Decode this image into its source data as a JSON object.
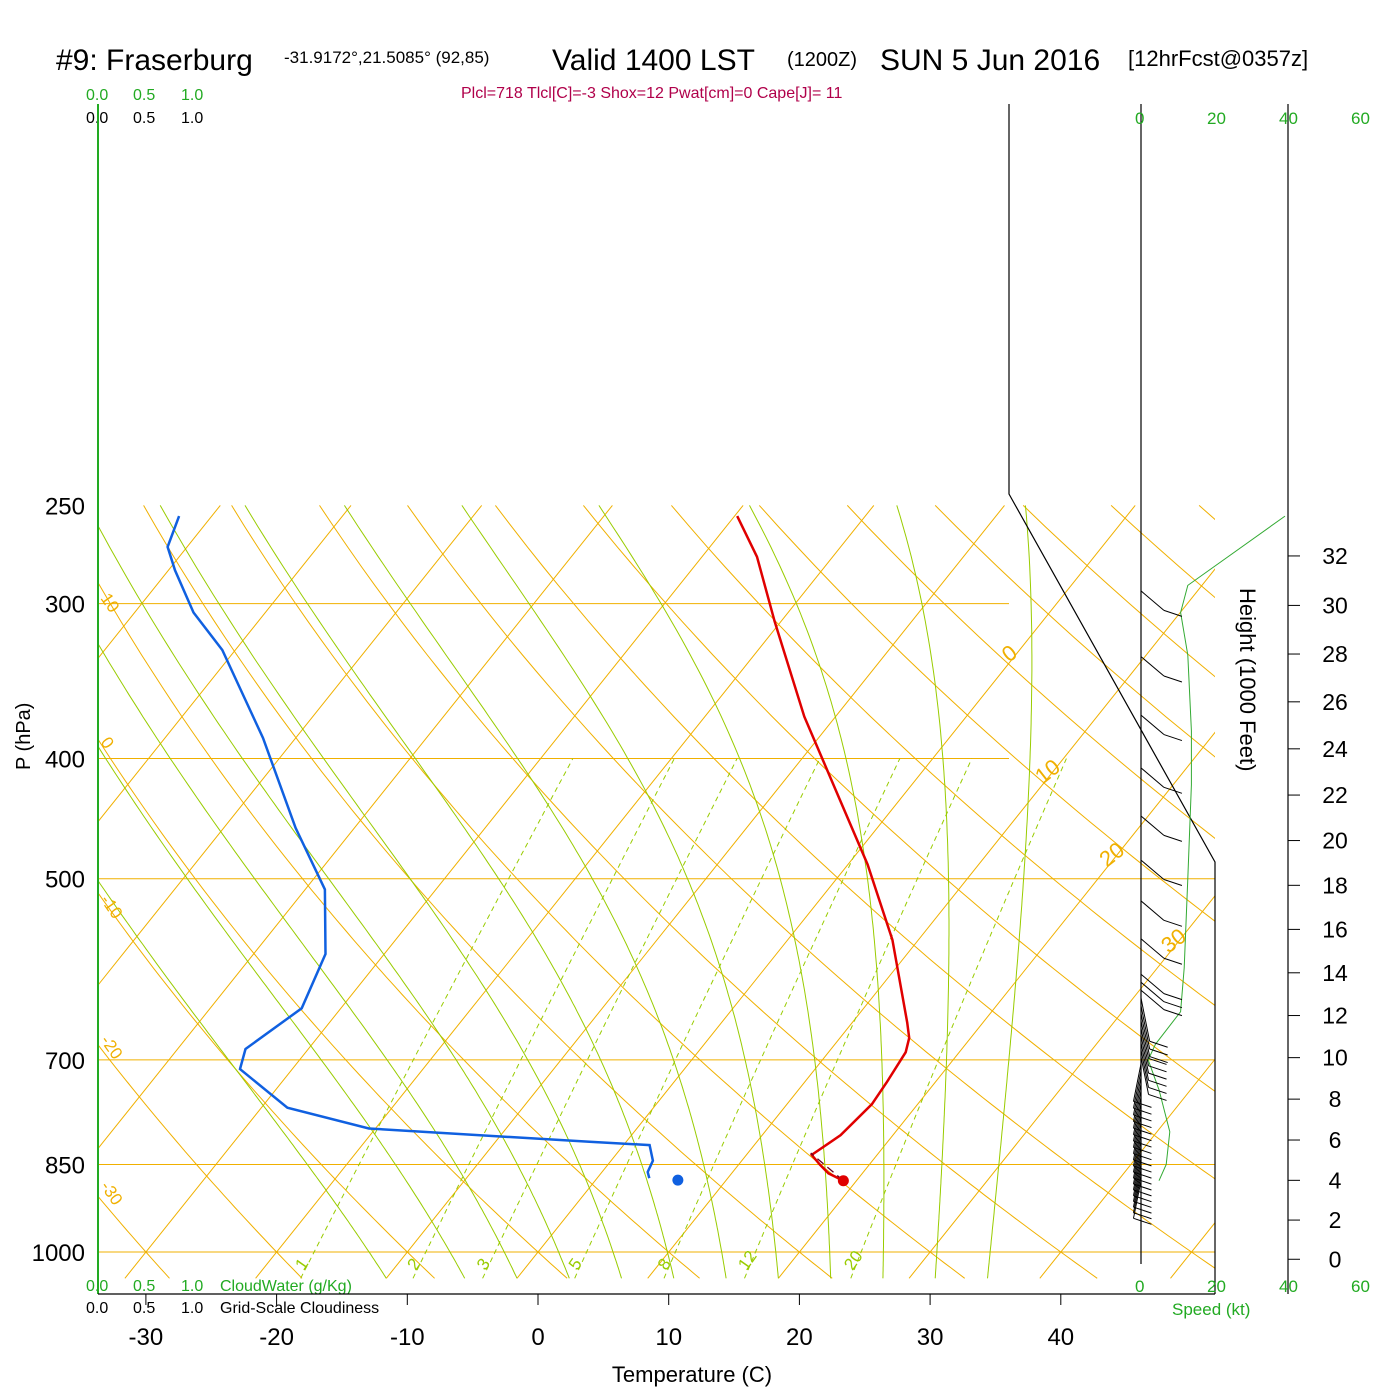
{
  "header": {
    "station": "#9: Fraserburg",
    "coords": "-31.9172°,21.5085° (92,85)",
    "valid_label": "Valid 1400 LST",
    "utc": "(1200Z)",
    "date": "SUN 5 Jun 2016",
    "forecast": "[12hrFcst@0357z]",
    "indices": "Plcl=718 Tlcl[C]=-3 Shox=12 Pwat[cm]=0 Cape[J]= 11"
  },
  "colors": {
    "temperature": "#e00000",
    "dewpoint": "#1060e0",
    "grid": "#f0b000",
    "moist_adiabat": "#99cc00",
    "mixing_ratio": "#99cc00",
    "green_text": "#22aa22",
    "indices": "#b0004a",
    "parcel": "#6a0020"
  },
  "chart_data": {
    "type": "line",
    "subtype": "skew-T log-P sounding",
    "xlabel": "Temperature (C)",
    "ylabel": "P (hPa)",
    "xlim": [
      -34,
      48
    ],
    "ylim": [
      1050,
      250
    ],
    "x_ticks": [
      -30,
      -20,
      -10,
      0,
      10,
      20,
      30,
      40
    ],
    "p_ticks": [
      250,
      300,
      400,
      500,
      700,
      850,
      1000
    ],
    "series": [
      {
        "key": "temperature",
        "points": [
          {
            "t": 19.0,
            "p": 876
          },
          {
            "t": 17.4,
            "p": 864
          },
          {
            "t": 16.2,
            "p": 850
          },
          {
            "t": 15.0,
            "p": 835
          },
          {
            "t": 16.0,
            "p": 805
          },
          {
            "t": 16.5,
            "p": 760
          },
          {
            "t": 16.3,
            "p": 730
          },
          {
            "t": 15.9,
            "p": 690
          },
          {
            "t": 15.3,
            "p": 672
          },
          {
            "t": 14.2,
            "p": 653
          },
          {
            "t": 8.0,
            "p": 560
          },
          {
            "t": 1.5,
            "p": 487
          },
          {
            "t": -4.8,
            "p": 430
          },
          {
            "t": -12.4,
            "p": 370
          },
          {
            "t": -20.5,
            "p": 310
          },
          {
            "t": -25.8,
            "p": 275
          },
          {
            "t": -29.8,
            "p": 255
          }
        ]
      },
      {
        "key": "dewpoint",
        "points": [
          {
            "t": 4.0,
            "p": 872
          },
          {
            "t": 3.5,
            "p": 862
          },
          {
            "t": 3.2,
            "p": 844
          },
          {
            "t": 2.0,
            "p": 820
          },
          {
            "t": -2.8,
            "p": 815
          },
          {
            "t": -20.5,
            "p": 795
          },
          {
            "t": -28.0,
            "p": 765
          },
          {
            "t": -34.0,
            "p": 712
          },
          {
            "t": -34.8,
            "p": 686
          },
          {
            "t": -33.0,
            "p": 636
          },
          {
            "t": -34.5,
            "p": 575
          },
          {
            "t": -38.5,
            "p": 510
          },
          {
            "t": -44.5,
            "p": 455
          },
          {
            "t": -52.5,
            "p": 385
          },
          {
            "t": -61.0,
            "p": 327
          },
          {
            "t": -65.5,
            "p": 305
          },
          {
            "t": -69.5,
            "p": 282
          },
          {
            "t": -71.5,
            "p": 270
          },
          {
            "t": -72.5,
            "p": 255
          }
        ]
      },
      {
        "key": "parcel",
        "points": [
          {
            "t": 19.0,
            "p": 876
          },
          {
            "t": 14.8,
            "p": 832
          }
        ]
      }
    ],
    "markers": [
      {
        "key": "surface-temperature",
        "t": 19.0,
        "p": 876
      },
      {
        "key": "surface-dewpoint",
        "t": 6.3,
        "p": 875
      }
    ],
    "isotherm_labels": [
      {
        "text": "-30",
        "t": -30,
        "p": 885
      },
      {
        "text": "-20",
        "t": -20,
        "p": 675
      },
      {
        "text": "-10",
        "t": -10,
        "p": 520
      },
      {
        "text": "0",
        "t": 0,
        "p": 388
      },
      {
        "text": "10",
        "t": 10,
        "p": 297
      },
      {
        "text": "0",
        "t": 0,
        "p": 335
      },
      {
        "text": "10",
        "t": 10,
        "p": 420
      },
      {
        "text": "20",
        "t": 20,
        "p": 490
      },
      {
        "text": "30",
        "t": 30,
        "p": 575
      }
    ],
    "mixing_ratio_labels": [
      "1",
      "2",
      "3",
      "5",
      "8",
      "12",
      "20"
    ],
    "height_axis": {
      "label": "Height (1000 Feet)",
      "ticks": [
        0,
        2,
        4,
        6,
        8,
        10,
        12,
        14,
        16,
        18,
        20,
        22,
        24,
        26,
        28,
        30,
        32
      ]
    },
    "wind_profile": {
      "label": "Speed (kt)",
      "ticks": [
        0,
        20,
        40,
        60
      ],
      "speed": [
        {
          "kt": 5,
          "p": 876
        },
        {
          "kt": 7,
          "p": 850
        },
        {
          "kt": 8,
          "p": 800
        },
        {
          "kt": 5,
          "p": 740
        },
        {
          "kt": 2,
          "p": 700
        },
        {
          "kt": 4,
          "p": 680
        },
        {
          "kt": 11,
          "p": 640
        },
        {
          "kt": 12,
          "p": 590
        },
        {
          "kt": 13,
          "p": 500
        },
        {
          "kt": 14,
          "p": 420
        },
        {
          "kt": 14,
          "p": 380
        },
        {
          "kt": 13,
          "p": 330
        },
        {
          "kt": 11,
          "p": 305
        },
        {
          "kt": 13,
          "p": 290
        },
        {
          "kt": 40,
          "p": 255
        }
      ]
    },
    "cloud_axes": {
      "cloud_water_label": "CloudWater (g/Kg)",
      "cloudiness_label": "Grid-Scale Cloudiness",
      "ticks": [
        "0.0",
        "0.5",
        "1.0"
      ]
    }
  }
}
